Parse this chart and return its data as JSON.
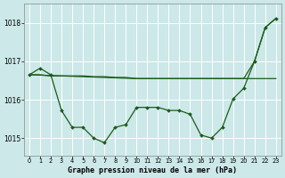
{
  "background_color": "#cce8e8",
  "grid_color": "#ffffff",
  "line_color": "#1a5c1a",
  "title": "Graphe pression niveau de la mer (hPa)",
  "xlim": [
    -0.5,
    23.5
  ],
  "ylim": [
    1014.55,
    1018.5
  ],
  "yticks": [
    1015,
    1016,
    1017,
    1018
  ],
  "xticks": [
    0,
    1,
    2,
    3,
    4,
    5,
    6,
    7,
    8,
    9,
    10,
    11,
    12,
    13,
    14,
    15,
    16,
    17,
    18,
    19,
    20,
    21,
    22,
    23
  ],
  "series_flat_x": [
    0,
    1,
    2,
    3,
    4,
    5,
    6,
    7,
    8,
    9,
    10,
    11,
    12,
    13,
    14,
    15,
    16,
    17,
    18,
    19,
    20,
    21,
    22,
    23
  ],
  "series_flat_y": [
    1016.65,
    1016.65,
    1016.62,
    1016.62,
    1016.62,
    1016.62,
    1016.6,
    1016.6,
    1016.58,
    1016.58,
    1016.55,
    1016.55,
    1016.55,
    1016.55,
    1016.55,
    1016.55,
    1016.55,
    1016.55,
    1016.55,
    1016.55,
    1016.55,
    1016.55,
    1016.55,
    1016.55
  ],
  "series_wavy_x": [
    0,
    1,
    2,
    3,
    4,
    5,
    6,
    7,
    8,
    9,
    10,
    11,
    12,
    13,
    14,
    15,
    16,
    17,
    18,
    19,
    20,
    21,
    22,
    23
  ],
  "series_wavy_y": [
    1016.65,
    1016.82,
    1016.65,
    1015.72,
    1015.28,
    1015.28,
    1015.0,
    1014.88,
    1015.28,
    1015.35,
    1015.8,
    1015.8,
    1015.8,
    1015.72,
    1015.72,
    1015.62,
    1015.08,
    1015.0,
    1015.28,
    1016.02,
    1016.3,
    1017.0,
    1017.88,
    1018.12
  ],
  "series_diag_x": [
    0,
    10,
    19,
    20,
    21,
    22,
    23
  ],
  "series_diag_y": [
    1016.65,
    1016.55,
    1016.55,
    1016.55,
    1017.0,
    1017.88,
    1018.12
  ]
}
